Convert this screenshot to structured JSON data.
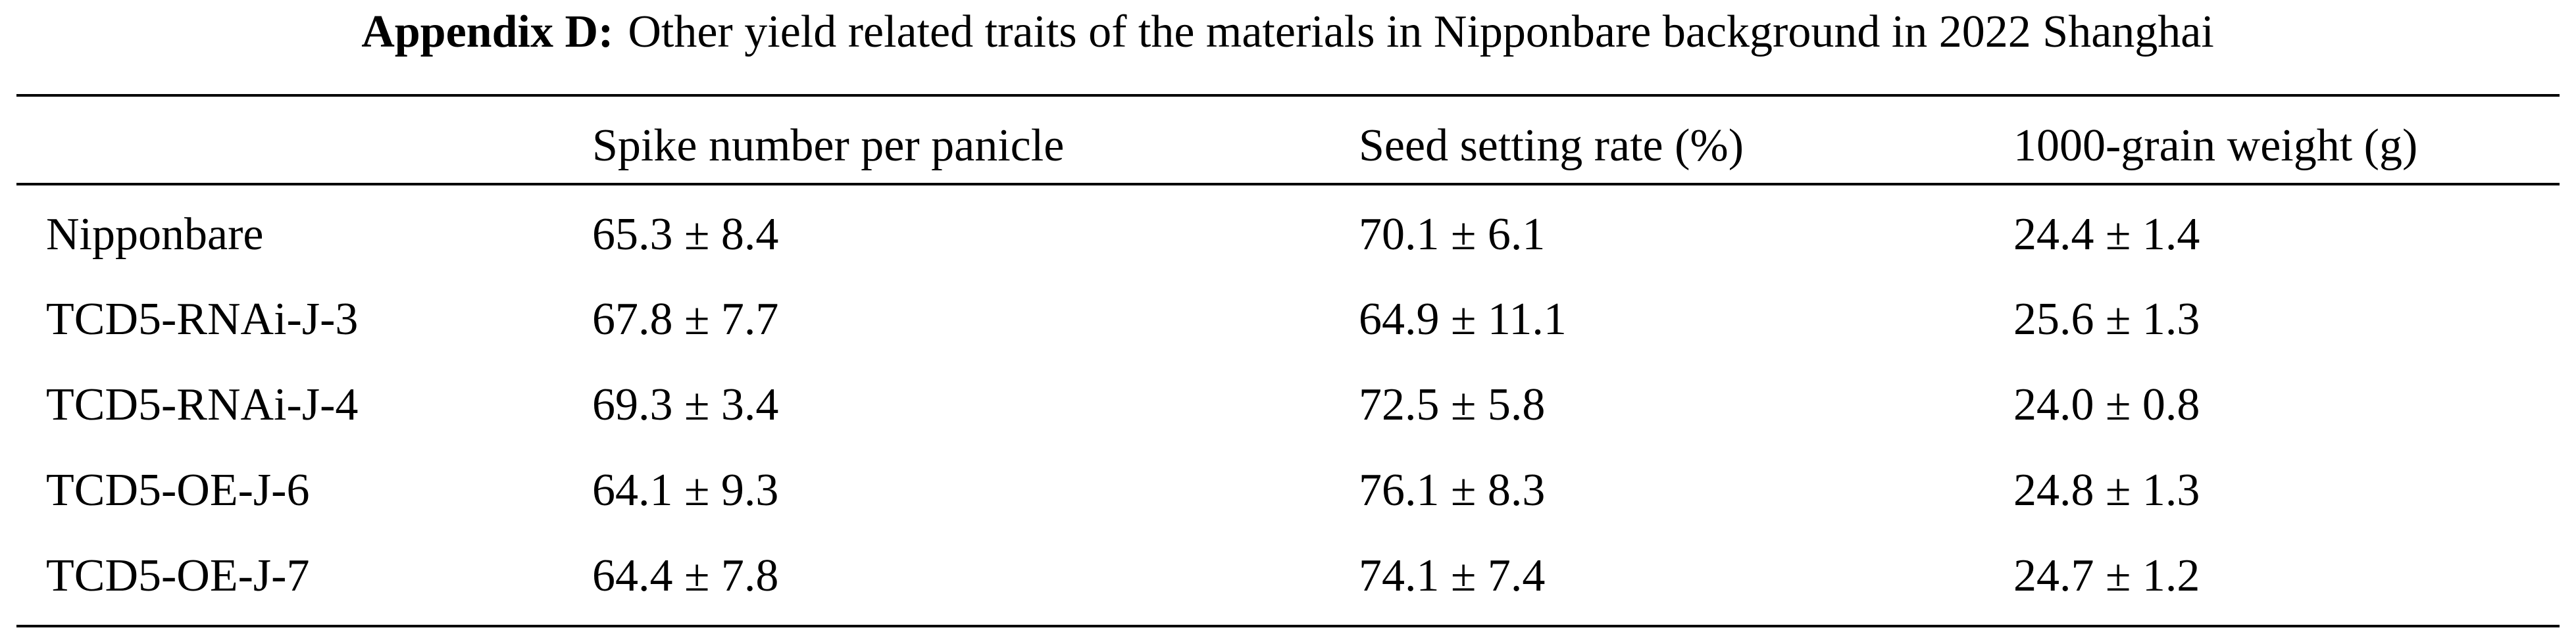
{
  "title": {
    "label": "Appendix D:",
    "text": "Other yield related traits of the materials in Nipponbare background in 2022 Shanghai"
  },
  "table": {
    "columns": [
      "Spike number per panicle",
      "Seed setting rate (%)",
      "1000-grain weight (g)"
    ],
    "rows": [
      [
        "Nipponbare",
        "65.3 ± 8.4",
        "70.1 ± 6.1",
        "24.4 ± 1.4"
      ],
      [
        "TCD5-RNAi-J-3",
        "67.8 ± 7.7",
        "64.9 ± 11.1",
        "25.6 ± 1.3"
      ],
      [
        "TCD5-RNAi-J-4",
        "69.3 ± 3.4",
        "72.5 ± 5.8",
        "24.0 ± 0.8"
      ],
      [
        "TCD5-OE-J-6",
        "64.1 ± 9.3",
        "76.1 ± 8.3",
        "24.8 ± 1.3"
      ],
      [
        "TCD5-OE-J-7",
        "64.4 ± 7.8",
        "74.1 ± 7.4",
        "24.7 ± 1.2"
      ]
    ]
  }
}
